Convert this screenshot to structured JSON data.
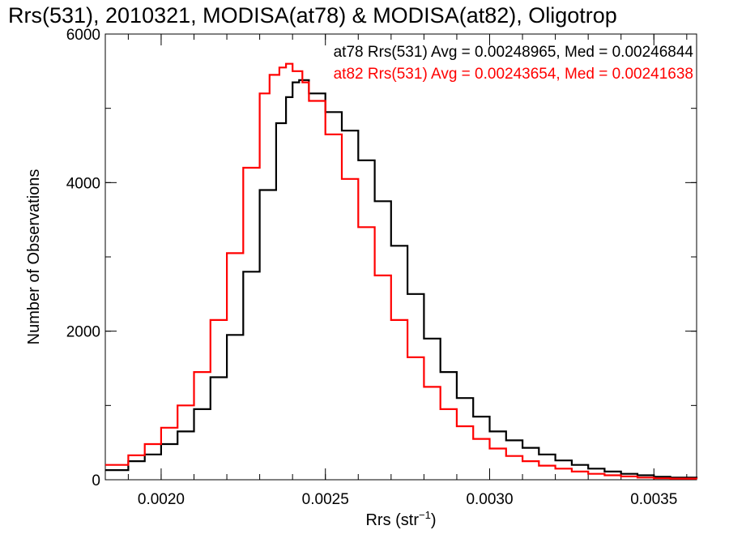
{
  "chart_data": {
    "type": "line",
    "title": "Rrs(531), 2010321, MODISA(at78) & MODISA(at82), Oligotrop",
    "xlabel_main": "Rrs (str",
    "xlabel_sup": "−1",
    "xlabel_close": ")",
    "ylabel": "Number of Observations",
    "xlim": [
      0.00183,
      0.00363
    ],
    "ylim": [
      0,
      6000
    ],
    "xticks": [
      {
        "value": 0.002,
        "label": "0.0020"
      },
      {
        "value": 0.0025,
        "label": "0.0025"
      },
      {
        "value": 0.003,
        "label": "0.0030"
      },
      {
        "value": 0.0035,
        "label": "0.0035"
      }
    ],
    "yticks": [
      {
        "value": 0,
        "label": "0"
      },
      {
        "value": 2000,
        "label": "2000"
      },
      {
        "value": 4000,
        "label": "4000"
      },
      {
        "value": 6000,
        "label": "6000"
      }
    ],
    "series": [
      {
        "name": "at78",
        "color": "#000000",
        "stats": "at78 Rrs(531) Avg = 0.00248965, Med = 0.00246844",
        "x": [
          0.00183,
          0.0019,
          0.00195,
          0.002,
          0.00205,
          0.0021,
          0.00215,
          0.0022,
          0.00225,
          0.0023,
          0.00235,
          0.00238,
          0.0024,
          0.00242,
          0.00245,
          0.0025,
          0.00255,
          0.0026,
          0.00265,
          0.0027,
          0.00275,
          0.0028,
          0.00285,
          0.0029,
          0.00295,
          0.003,
          0.00305,
          0.0031,
          0.00315,
          0.0032,
          0.00325,
          0.0033,
          0.00335,
          0.0034,
          0.00345,
          0.0035,
          0.00355,
          0.00363
        ],
        "y": [
          130,
          250,
          340,
          480,
          650,
          950,
          1380,
          1950,
          2800,
          3900,
          4800,
          5150,
          5350,
          5380,
          5200,
          4950,
          4700,
          4300,
          3750,
          3150,
          2500,
          1900,
          1450,
          1100,
          850,
          650,
          530,
          430,
          340,
          260,
          200,
          150,
          110,
          80,
          60,
          40,
          30,
          20
        ]
      },
      {
        "name": "at82",
        "color": "#ff0000",
        "stats": "at82 Rrs(531) Avg = 0.00243654, Med = 0.00241638",
        "x": [
          0.00183,
          0.0019,
          0.00195,
          0.002,
          0.00205,
          0.0021,
          0.00215,
          0.0022,
          0.00225,
          0.0023,
          0.00233,
          0.00236,
          0.00238,
          0.0024,
          0.00243,
          0.00245,
          0.0025,
          0.00255,
          0.0026,
          0.00265,
          0.0027,
          0.00275,
          0.0028,
          0.00285,
          0.0029,
          0.00295,
          0.003,
          0.00305,
          0.0031,
          0.00315,
          0.0032,
          0.00325,
          0.0033,
          0.00335,
          0.0034,
          0.00345,
          0.0035,
          0.00355,
          0.00363
        ],
        "y": [
          200,
          330,
          480,
          700,
          1000,
          1450,
          2150,
          3050,
          4200,
          5200,
          5450,
          5550,
          5600,
          5500,
          5350,
          5100,
          4650,
          4050,
          3400,
          2750,
          2150,
          1650,
          1250,
          950,
          720,
          550,
          420,
          320,
          250,
          190,
          150,
          110,
          80,
          60,
          45,
          30,
          20,
          15,
          10
        ]
      }
    ]
  }
}
